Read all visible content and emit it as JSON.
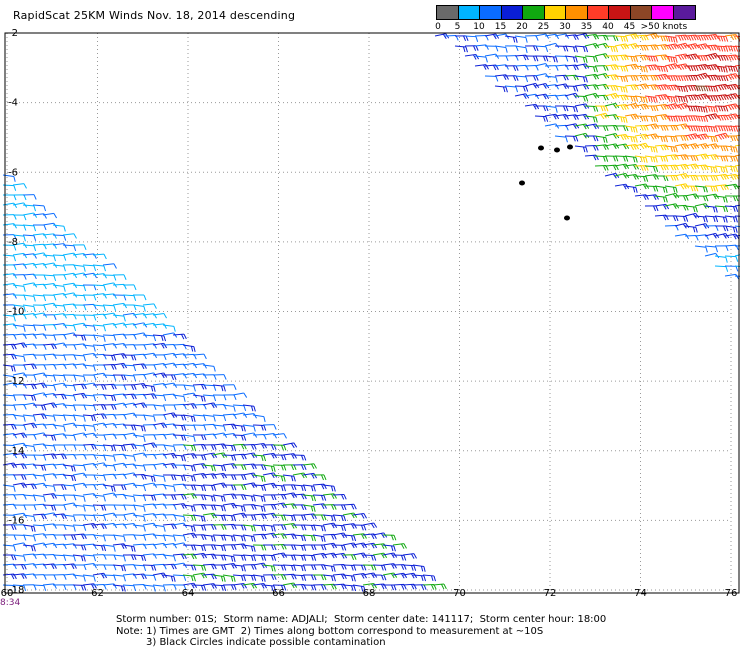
{
  "title": "RapidScat 25KM Winds Nov. 18, 2014 descending",
  "legend": {
    "labels": [
      "0",
      "5",
      "10",
      "15",
      "20",
      "25",
      "30",
      "35",
      "40",
      "45",
      ">50 knots"
    ],
    "colors": [
      "#6a6a6a",
      "#00b4ff",
      "#0a6cff",
      "#0a1ed6",
      "#10a810",
      "#ffd200",
      "#ff9000",
      "#ff3c28",
      "#c81414",
      "#8c4626",
      "#ff00ff",
      "#5a1a9c"
    ]
  },
  "map": {
    "lon_ticks": [
      "60",
      "62",
      "64",
      "66",
      "68",
      "70",
      "72",
      "74",
      "76"
    ],
    "lat_ticks": [
      "-2",
      "-4",
      "-6",
      "-8",
      "-10",
      "-12",
      "-14",
      "-16",
      "-18"
    ],
    "lon_range": [
      60,
      76
    ],
    "lat_range": [
      -2,
      -18
    ],
    "pass_time_label": "8:34"
  },
  "footer": {
    "line1": "Storm number: 01S;  Storm name: ADJALI;  Storm center date: 141117;  Storm center hour: 18:00",
    "line2": "Note: 1) Times are GMT  2) Times along bottom correspond to measurement at ~10S",
    "line3": "3) Black Circles indicate possible contamination"
  }
}
